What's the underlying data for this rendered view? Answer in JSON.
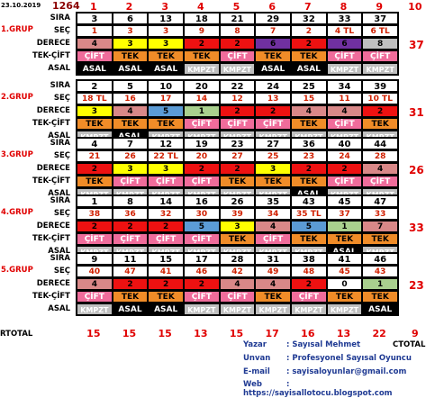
{
  "header": {
    "date": "23.10.2019",
    "draw_no": "1264",
    "columns": [
      "1",
      "2",
      "3",
      "4",
      "5",
      "6",
      "7",
      "8",
      "9",
      "10"
    ]
  },
  "labels": {
    "sira": "SIRA",
    "sec": "SEÇ",
    "derece": "DERECE",
    "tekcift": "TEK-ÇİFT",
    "asal": "ASAL",
    "rtotal": "RTOTAL",
    "ctotal": "CTOTAL"
  },
  "groups": [
    {
      "name": "1.GRUP",
      "total": "37",
      "sira": [
        "3",
        "6",
        "13",
        "18",
        "21",
        "29",
        "32",
        "33",
        "37"
      ],
      "sec": [
        "1",
        "3",
        "3",
        "9",
        "8",
        "7",
        "2",
        "4 TL",
        "6 TL"
      ],
      "derece": [
        {
          "v": "4",
          "c": "pink"
        },
        {
          "v": "3",
          "c": "yellow"
        },
        {
          "v": "3",
          "c": "yellow"
        },
        {
          "v": "2",
          "c": "red"
        },
        {
          "v": "2",
          "c": "red"
        },
        {
          "v": "6",
          "c": "purple"
        },
        {
          "v": "2",
          "c": "red"
        },
        {
          "v": "6",
          "c": "purple"
        },
        {
          "v": "8",
          "c": "grey"
        }
      ],
      "tekcift": [
        "ÇİFT",
        "TEK",
        "TEK",
        "TEK",
        "ÇİFT",
        "TEK",
        "TEK",
        "ÇİFT",
        "ÇİFT"
      ],
      "asal": [
        "ASAL",
        "ASAL",
        "ASAL",
        "KMPZT",
        "KMPZT",
        "ASAL",
        "ASAL",
        "KMPZT",
        "KMPZT"
      ]
    },
    {
      "name": "2.GRUP",
      "total": "31",
      "sira": [
        "2",
        "5",
        "10",
        "20",
        "22",
        "24",
        "25",
        "34",
        "39"
      ],
      "sec": [
        "18 TL",
        "16",
        "17",
        "14",
        "12",
        "13",
        "15",
        "11",
        "10 TL"
      ],
      "derece": [
        {
          "v": "3",
          "c": "yellow"
        },
        {
          "v": "4",
          "c": "pink"
        },
        {
          "v": "5",
          "c": "blue"
        },
        {
          "v": "1",
          "c": "green"
        },
        {
          "v": "2",
          "c": "red"
        },
        {
          "v": "2",
          "c": "red"
        },
        {
          "v": "4",
          "c": "pink"
        },
        {
          "v": "4",
          "c": "pink"
        },
        {
          "v": "2",
          "c": "red"
        }
      ],
      "tekcift": [
        "TEK",
        "TEK",
        "TEK",
        "ÇİFT",
        "ÇİFT",
        "ÇİFT",
        "TEK",
        "ÇİFT",
        "TEK"
      ],
      "asal": [
        "KMPZT",
        "ASAL",
        "KMPZT",
        "KMPZT",
        "KMPZT",
        "KMPZT",
        "KMPZT",
        "KMPZT",
        "KMPZT"
      ]
    },
    {
      "name": "3.GRUP",
      "total": "26",
      "sira": [
        "4",
        "7",
        "12",
        "19",
        "23",
        "27",
        "36",
        "40",
        "44"
      ],
      "sec": [
        "21",
        "26",
        "22 TL",
        "20",
        "27",
        "25",
        "23",
        "24",
        "28"
      ],
      "derece": [
        {
          "v": "2",
          "c": "red"
        },
        {
          "v": "3",
          "c": "yellow"
        },
        {
          "v": "3",
          "c": "yellow"
        },
        {
          "v": "2",
          "c": "red"
        },
        {
          "v": "2",
          "c": "red"
        },
        {
          "v": "3",
          "c": "yellow"
        },
        {
          "v": "2",
          "c": "red"
        },
        {
          "v": "2",
          "c": "red"
        },
        {
          "v": "4",
          "c": "pink"
        }
      ],
      "tekcift": [
        "TEK",
        "ÇİFT",
        "ÇİFT",
        "ÇİFT",
        "TEK",
        "TEK",
        "TEK",
        "ÇİFT",
        "ÇİFT"
      ],
      "asal": [
        "KMPZT",
        "KMPZT",
        "KMPZT",
        "KMPZT",
        "KMPZT",
        "KMPZT",
        "ASAL",
        "KMPZT",
        "KMPZT"
      ]
    },
    {
      "name": "4.GRUP",
      "total": "33",
      "sira": [
        "1",
        "8",
        "14",
        "16",
        "26",
        "35",
        "43",
        "45",
        "47"
      ],
      "sec": [
        "38",
        "36",
        "32",
        "30",
        "39",
        "34",
        "35 TL",
        "37",
        "33"
      ],
      "derece": [
        {
          "v": "2",
          "c": "red"
        },
        {
          "v": "2",
          "c": "red"
        },
        {
          "v": "2",
          "c": "red"
        },
        {
          "v": "5",
          "c": "blue"
        },
        {
          "v": "3",
          "c": "yellow"
        },
        {
          "v": "4",
          "c": "pink"
        },
        {
          "v": "5",
          "c": "blue"
        },
        {
          "v": "1",
          "c": "green"
        },
        {
          "v": "7",
          "c": "pink"
        }
      ],
      "tekcift": [
        "ÇİFT",
        "ÇİFT",
        "ÇİFT",
        "ÇİFT",
        "TEK",
        "ÇİFT",
        "TEK",
        "TEK",
        "TEK"
      ],
      "asal": [
        "KMPZT",
        "KMPZT",
        "KMPZT",
        "KMPZT",
        "KMPZT",
        "KMPZT",
        "KMPZT",
        "ASAL",
        "KMPZT"
      ]
    },
    {
      "name": "5.GRUP",
      "total": "23",
      "sira": [
        "9",
        "11",
        "15",
        "17",
        "28",
        "31",
        "38",
        "41",
        "46"
      ],
      "sec": [
        "40",
        "47",
        "41",
        "46",
        "42",
        "49",
        "48",
        "45",
        "43"
      ],
      "derece": [
        {
          "v": "4",
          "c": "pink"
        },
        {
          "v": "2",
          "c": "red"
        },
        {
          "v": "2",
          "c": "red"
        },
        {
          "v": "2",
          "c": "red"
        },
        {
          "v": "4",
          "c": "pink"
        },
        {
          "v": "4",
          "c": "pink"
        },
        {
          "v": "2",
          "c": "red"
        },
        {
          "v": "0",
          "c": "white"
        },
        {
          "v": "1",
          "c": "green"
        }
      ],
      "tekcift": [
        "ÇİFT",
        "TEK",
        "TEK",
        "ÇİFT",
        "ÇİFT",
        "TEK",
        "ÇİFT",
        "TEK",
        "TEK"
      ],
      "asal": [
        "KMPZT",
        "ASAL",
        "ASAL",
        "KMPZT",
        "KMPZT",
        "KMPZT",
        "KMPZT",
        "KMPZT",
        "ASAL"
      ]
    }
  ],
  "rtotal": [
    "15",
    "15",
    "15",
    "13",
    "15",
    "17",
    "16",
    "13",
    "22",
    "9"
  ],
  "info": {
    "yazar_k": "Yazar",
    "yazar_v": ": Sayısal Mehmet",
    "unvan_k": "Unvan",
    "unvan_v": ": Profesyonel Sayısal Oyuncu",
    "email_k": "E-mail",
    "email_v": ": sayisaloyunlar@gmail.com",
    "web_k": "Web",
    "web_v": ": https://sayisallotocu.blogspot.com"
  },
  "colors": {
    "red": "#ee1111",
    "yellow": "#ffff00",
    "pink": "#d98888",
    "blue": "#5b9bd5",
    "purple": "#7030a0",
    "green": "#a9d08e",
    "grey": "#bfbfbf",
    "tek": "#f08c28",
    "cift": "#f06c9b"
  }
}
